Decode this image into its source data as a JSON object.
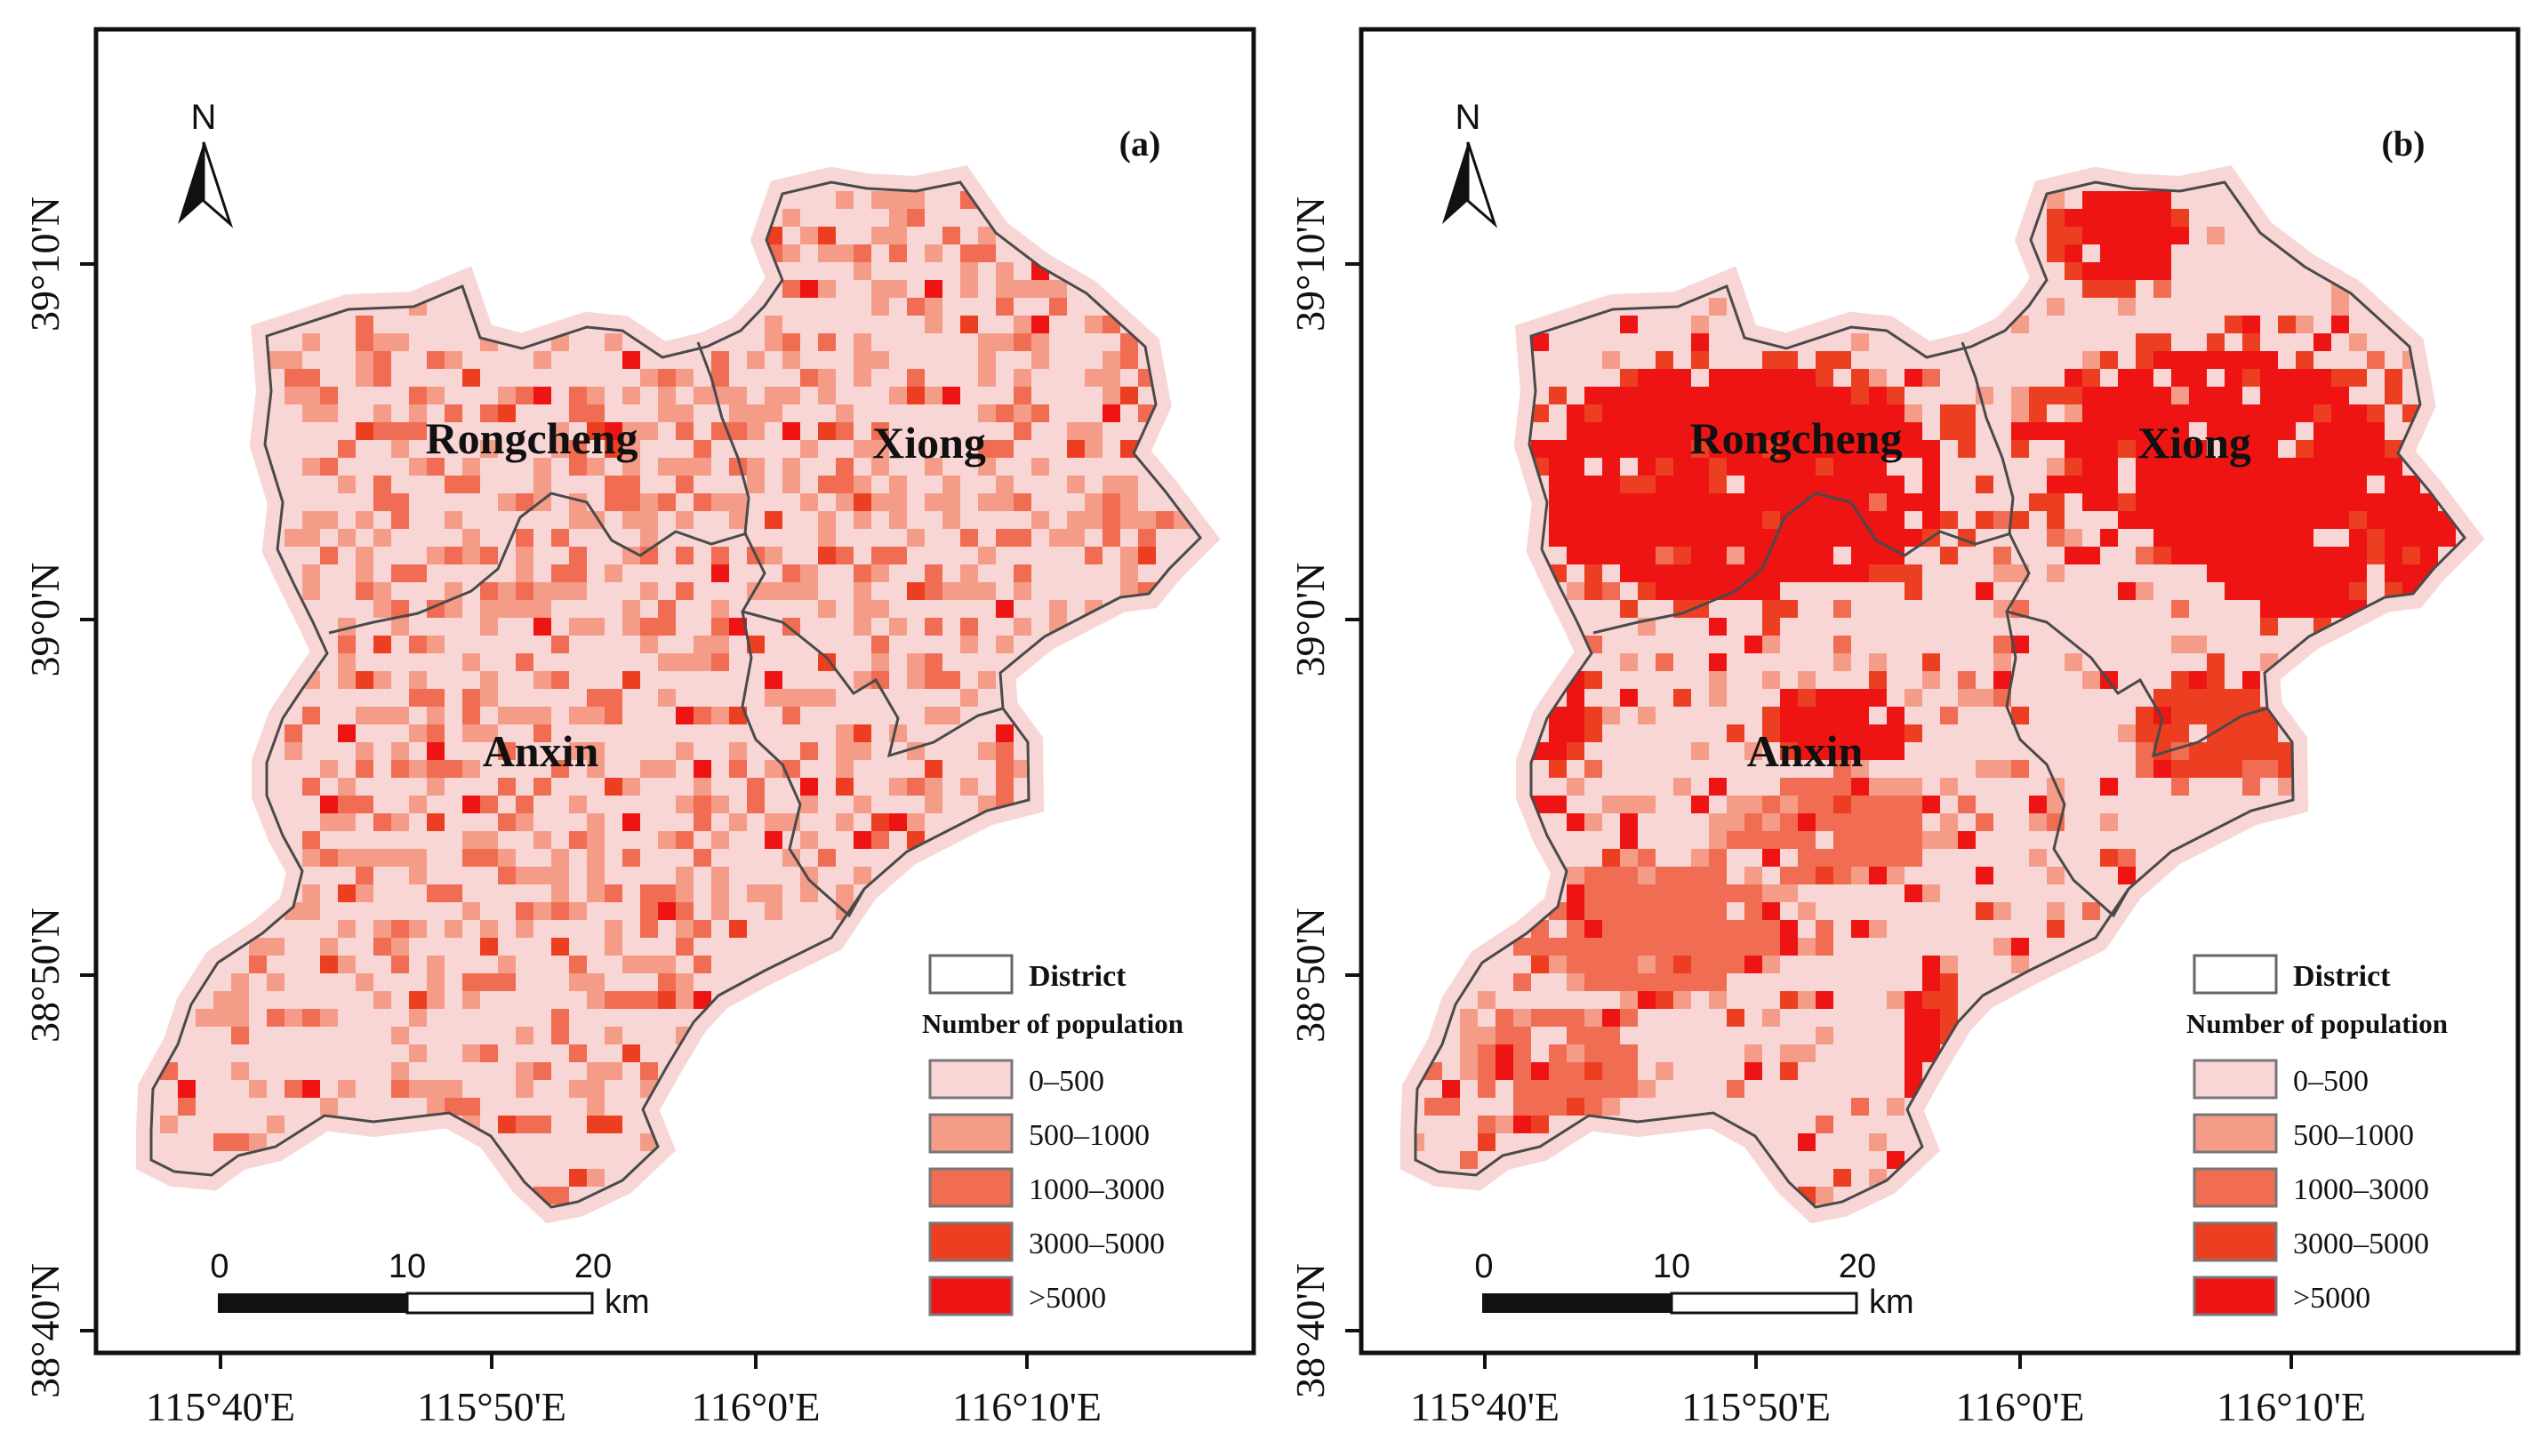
{
  "colors": {
    "background": "#ffffff",
    "frame": "#111111",
    "class_0": "#f9d6d6",
    "class_1": "#f59c88",
    "class_2": "#f06c52",
    "class_3": "#ec3f22",
    "class_4": "#ee1414",
    "boundary": "#4a4a4a"
  },
  "north_arrow": {
    "label": "N"
  },
  "x_axis": {
    "ticks": [
      "115°40'E",
      "115°50'E",
      "116°0'E",
      "116°10'E"
    ]
  },
  "y_axis": {
    "ticks": [
      "39°10'N",
      "39°0'N",
      "38°50'N",
      "38°40'N"
    ]
  },
  "scale_bar": {
    "ticks": [
      "0",
      "10",
      "20"
    ],
    "unit": "km"
  },
  "legend": {
    "district_label": "District",
    "title": "Number of population",
    "classes": [
      "0–500",
      "500–1000",
      "1000–3000",
      "3000–5000",
      ">5000"
    ]
  },
  "districts": [
    "Rongcheng",
    "Xiong",
    "Anxin"
  ],
  "panels": [
    {
      "label": "(a)",
      "class_weights": [
        0.62,
        0.22,
        0.12,
        0.03,
        0.01
      ],
      "hotspots": []
    },
    {
      "label": "(b)",
      "class_weights": [
        0.8,
        0.08,
        0.04,
        0.03,
        0.05
      ],
      "hotspots": [
        {
          "lon": 115.82,
          "lat": 39.065,
          "rx": 0.13,
          "ry": 0.055,
          "cls": 4
        },
        {
          "lon": 116.12,
          "lat": 39.08,
          "rx": 0.1,
          "ry": 0.045,
          "cls": 4
        },
        {
          "lon": 116.19,
          "lat": 39.04,
          "rx": 0.09,
          "ry": 0.04,
          "cls": 4
        },
        {
          "lon": 116.06,
          "lat": 39.18,
          "rx": 0.035,
          "ry": 0.025,
          "cls": 4
        },
        {
          "lon": 115.7,
          "lat": 38.96,
          "rx": 0.03,
          "ry": 0.03,
          "cls": 4
        },
        {
          "lon": 115.89,
          "lat": 38.95,
          "rx": 0.04,
          "ry": 0.02,
          "cls": 4
        },
        {
          "lon": 116.12,
          "lat": 38.95,
          "rx": 0.05,
          "ry": 0.025,
          "cls": 3
        },
        {
          "lon": 115.88,
          "lat": 38.9,
          "rx": 0.06,
          "ry": 0.025,
          "cls": 2
        },
        {
          "lon": 115.77,
          "lat": 38.855,
          "rx": 0.08,
          "ry": 0.03,
          "cls": 2
        },
        {
          "lon": 115.71,
          "lat": 38.79,
          "rx": 0.05,
          "ry": 0.025,
          "cls": 2
        },
        {
          "lon": 115.94,
          "lat": 38.8,
          "rx": 0.012,
          "ry": 0.04,
          "cls": 4
        }
      ]
    }
  ]
}
